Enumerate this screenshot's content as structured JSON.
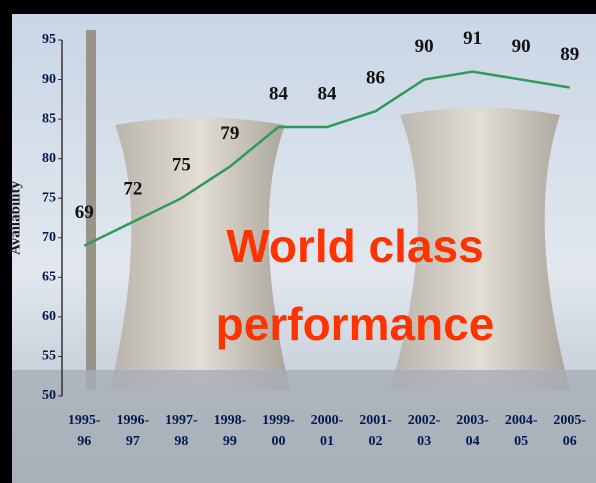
{
  "chart_data": {
    "type": "line",
    "y_label": "Availability",
    "annotations": [
      "World class",
      "performance"
    ],
    "categories": [
      "1995-96",
      "1996-97",
      "1997-98",
      "1998-99",
      "1999-00",
      "2000-01",
      "2001-02",
      "2002-03",
      "2003-04",
      "2004-05",
      "2005-06"
    ],
    "series": [
      {
        "color": "#2f9a5a",
        "values": [
          69,
          72,
          75,
          79,
          84,
          84,
          86,
          90,
          91,
          90,
          89
        ]
      }
    ],
    "ylim": [
      50,
      95
    ],
    "yticks": [
      50,
      55,
      60,
      65,
      70,
      75,
      80,
      85,
      90,
      95
    ],
    "grid": false
  }
}
